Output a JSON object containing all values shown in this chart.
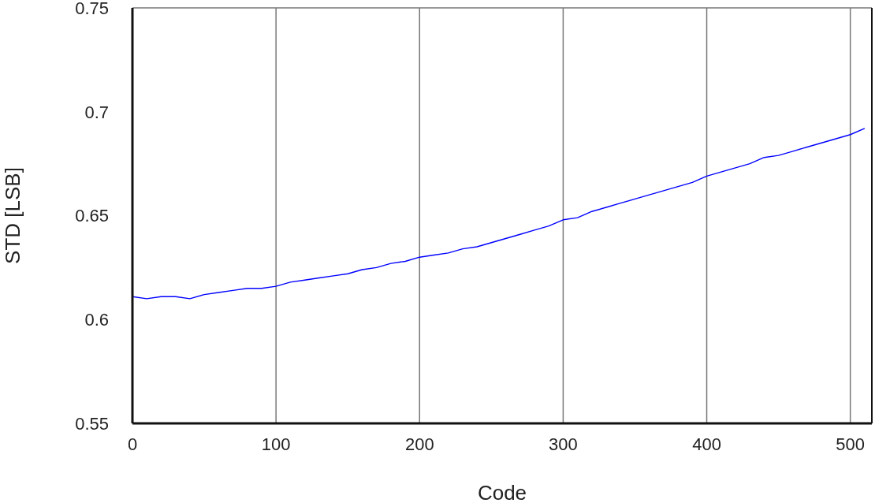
{
  "chart_data": {
    "type": "line",
    "xlabel": "Code",
    "ylabel": "STD  [LSB]",
    "xlim": [
      0,
      515
    ],
    "xticks": [
      0,
      100,
      200,
      300,
      400,
      500
    ],
    "ylim": [
      0.55,
      0.75
    ],
    "yticks": [
      0.55,
      0.6,
      0.65,
      0.7,
      0.75
    ],
    "grid": true,
    "legend": false,
    "marker": "none",
    "line_style": "solid",
    "x": [
      0,
      10,
      20,
      30,
      40,
      50,
      60,
      70,
      80,
      90,
      100,
      110,
      120,
      130,
      140,
      150,
      160,
      170,
      180,
      190,
      200,
      210,
      220,
      230,
      240,
      250,
      260,
      270,
      280,
      290,
      300,
      310,
      320,
      330,
      340,
      350,
      360,
      370,
      380,
      390,
      400,
      410,
      420,
      430,
      440,
      450,
      460,
      470,
      480,
      490,
      500,
      510
    ],
    "series": [
      {
        "color": "#0000ff",
        "values": [
          0.611,
          0.61,
          0.611,
          0.611,
          0.61,
          0.612,
          0.613,
          0.614,
          0.615,
          0.615,
          0.616,
          0.618,
          0.619,
          0.62,
          0.621,
          0.622,
          0.624,
          0.625,
          0.627,
          0.628,
          0.63,
          0.631,
          0.632,
          0.634,
          0.635,
          0.637,
          0.639,
          0.641,
          0.643,
          0.645,
          0.648,
          0.649,
          0.652,
          0.654,
          0.656,
          0.658,
          0.66,
          0.662,
          0.664,
          0.666,
          0.669,
          0.671,
          0.673,
          0.675,
          0.678,
          0.679,
          0.681,
          0.683,
          0.685,
          0.687,
          0.689,
          0.692
        ]
      }
    ]
  }
}
